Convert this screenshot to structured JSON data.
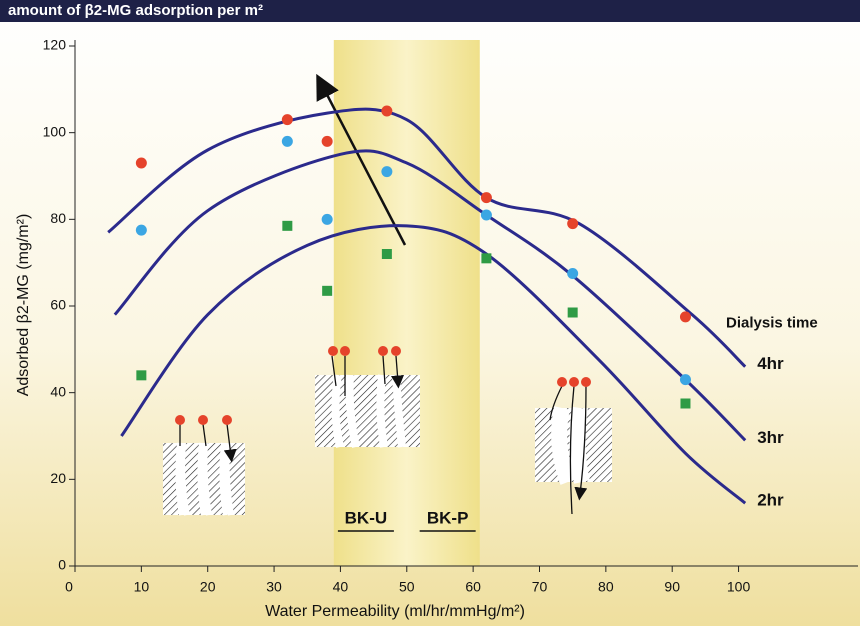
{
  "chart_data": {
    "type": "scatter",
    "title": "amount of β2-MG adsorption per m²",
    "x_label": "Water Permeability (ml/hr/mmHg/m²)",
    "y_label": "Adsorbed β2-MG (mg/m²)",
    "xlim": [
      0,
      118
    ],
    "ylim": [
      0,
      120
    ],
    "xticks": [
      0,
      10,
      20,
      30,
      40,
      50,
      60,
      70,
      80,
      90,
      100
    ],
    "yticks": [
      0,
      20,
      40,
      60,
      80,
      100,
      120
    ],
    "grid": false,
    "shaded_region": [
      39,
      61
    ],
    "region_labels": [
      "BK-U",
      "BK-P"
    ],
    "curve_legend_title": "Dialysis time",
    "series": [
      {
        "color": "#e5432b",
        "x": [
          10,
          32,
          38,
          47,
          62,
          75,
          92
        ],
        "values": [
          93,
          103,
          98,
          105,
          85,
          79,
          57.5
        ]
      },
      {
        "color": "#3ba6e3",
        "x": [
          10,
          32,
          38,
          47,
          62,
          75,
          92
        ],
        "values": [
          77.5,
          98,
          80,
          91,
          81,
          67.5,
          43
        ]
      },
      {
        "color": "#2f9b45",
        "x": [
          10,
          32,
          38,
          47,
          62,
          75,
          92
        ],
        "values": [
          44,
          78.5,
          63.5,
          72,
          71,
          58.5,
          37.5
        ]
      }
    ],
    "curves": [
      {
        "name": "4hr",
        "color": "#2b2a8c",
        "x": [
          5,
          20,
          38,
          50,
          62,
          76,
          93,
          101
        ],
        "values": [
          77,
          96,
          104.5,
          103,
          85,
          79,
          58,
          46
        ]
      },
      {
        "name": "3hr",
        "color": "#2b2a8c",
        "x": [
          6,
          20,
          40,
          50,
          62,
          75,
          92,
          101
        ],
        "values": [
          58,
          82,
          95,
          93,
          81,
          67,
          43,
          29
        ]
      },
      {
        "name": "2hr",
        "color": "#2b2a8c",
        "x": [
          7,
          20,
          35,
          50,
          62,
          79,
          92,
          101
        ],
        "values": [
          30,
          58,
          74,
          78.5,
          72,
          47.5,
          26,
          14.5
        ]
      }
    ]
  }
}
